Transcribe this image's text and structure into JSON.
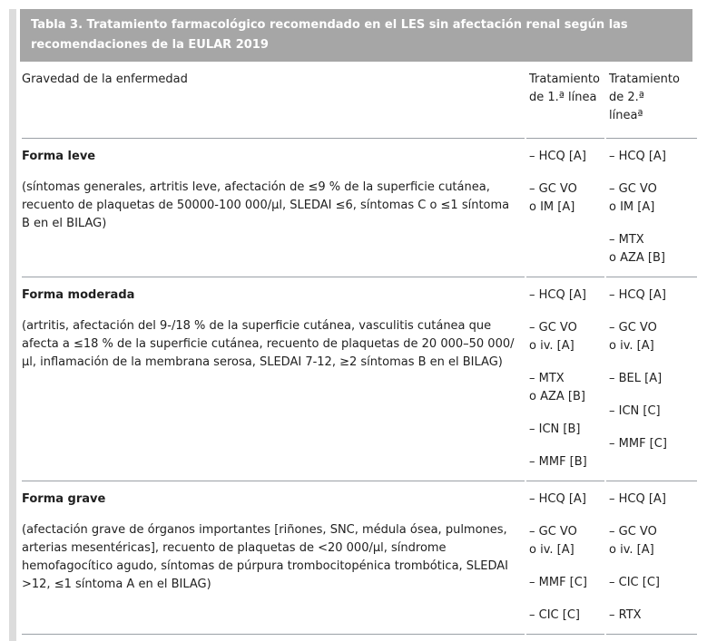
{
  "table": {
    "title": "Tabla 3. Tratamiento farmacológico recomendado en el LES sin afectación renal según las recomendaciones de la EULAR 2019",
    "columns": {
      "severity": "Gravedad de la enfermedad",
      "first_line": "Tratamiento\nde 1.ª línea",
      "second_line": "Tratamiento\nde 2.ª\nlíneaª"
    },
    "rows": [
      {
        "severity_title": "Forma leve",
        "severity_desc": "(síntomas generales, artritis leve, afectación de ≤9 % de la superficie cutánea, recuento de plaquetas de 50000-100 000/µl, SLEDAI ≤6, síntomas C o ≤1 síntoma B en el BILAG)",
        "first_line": [
          "– HCQ [A]",
          "– GC VO\no IM [A]"
        ],
        "second_line": [
          "– HCQ [A]",
          "– GC VO\no IM [A]",
          "– MTX\no AZA [B]"
        ]
      },
      {
        "severity_title": "Forma moderada",
        "severity_desc": "(artritis, afectación del 9-/18 % de la superficie cutánea, vasculitis cutánea que afecta a ≤18 % de la superficie cutánea, recuento de plaquetas de 20 000–50 000/µl, inflamación de la membrana serosa, SLEDAI 7-12, ≥2 síntomas B en el BILAG)",
        "first_line": [
          "– HCQ [A]",
          "– GC VO\no iv. [A]",
          "– MTX\no AZA [B]",
          "– ICN [B]",
          "– MMF [B]"
        ],
        "second_line": [
          "– HCQ [A]",
          "– GC VO\no iv. [A]",
          "– BEL [A]",
          "– ICN [C]",
          "– MMF [C]"
        ]
      },
      {
        "severity_title": "Forma grave",
        "severity_desc": "(afectación grave de órganos importantes [riñones, SNC, médula ósea, pulmones, arterias mesentéricas], recuento de plaquetas de <20 000/µl, síndrome hemofagocítico agudo, síntomas de púrpura trombocitopénica trombótica, SLEDAI >12, ≤1 síntoma A en el BILAG)",
        "first_line": [
          "– HCQ [A]",
          "– GC VO\no iv. [A]",
          "– MMF [C]",
          "– CIC [C]"
        ],
        "second_line": [
          "– HCQ [A]",
          "– GC VO\no iv. [A]",
          "– CIC [C]",
          "– RTX"
        ]
      }
    ]
  },
  "colors": {
    "title_bar_bg": "#a6a6a6",
    "title_bar_text": "#ffffff",
    "border": "#9aa0a6",
    "left_stripe": "#dcdcdc",
    "body_text": "#212121"
  }
}
